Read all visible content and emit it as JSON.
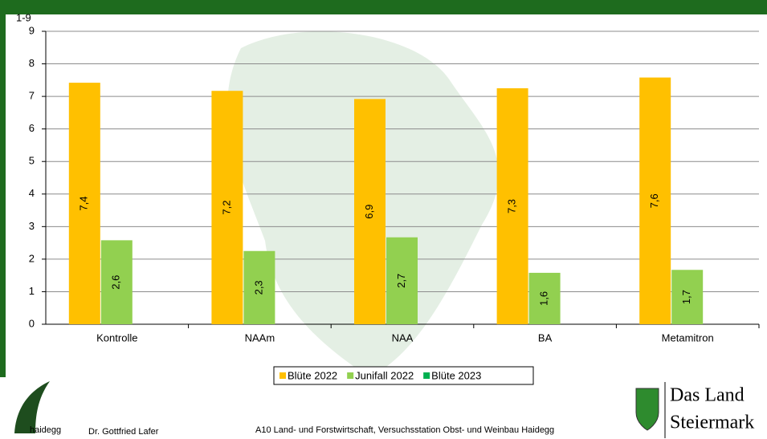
{
  "chart_data": {
    "type": "bar",
    "y_label": "1-9",
    "categories": [
      "Kontrolle",
      "NAAm",
      "NAA",
      "BA",
      "Metamitron"
    ],
    "series": [
      {
        "name": "Blüte 2022",
        "color": "#ffc000",
        "values": [
          7.42,
          7.17,
          6.92,
          7.25,
          7.58
        ],
        "value_labels": [
          "7,4",
          "7,2",
          "6,9",
          "7,3",
          "7,6"
        ]
      },
      {
        "name": "Junifall 2022",
        "color": "#92d050",
        "values": [
          2.58,
          2.25,
          2.67,
          1.58,
          1.67
        ],
        "value_labels": [
          "2,6",
          "2,3",
          "2,7",
          "1,6",
          "1,7"
        ]
      },
      {
        "name": "Blüte 2023",
        "color": "#00b050",
        "values": [
          null,
          null,
          null,
          null,
          null
        ]
      }
    ],
    "ylim": [
      0,
      9
    ],
    "yticks": [
      0,
      1,
      2,
      3,
      4,
      5,
      6,
      7,
      8,
      9
    ],
    "grid": true
  },
  "footer": {
    "logo_text": "haidegg",
    "author": "Dr. Gottfried Lafer",
    "institution": "A10 Land- und Forstwirtschaft, Versuchsstation Obst- und Weinbau Haidegg",
    "brand_line1": "Das Land",
    "brand_line2": "Steiermark"
  }
}
